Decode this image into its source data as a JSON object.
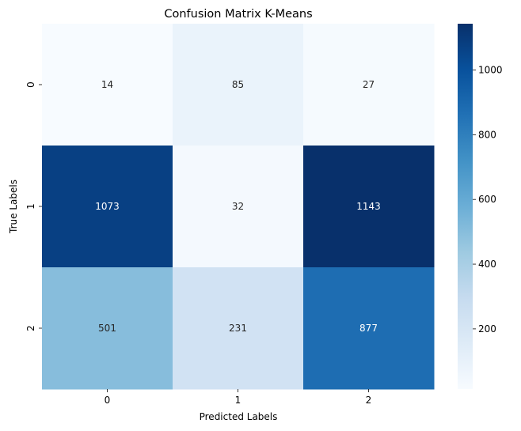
{
  "chart_data": {
    "type": "heatmap",
    "title": "Confusion Matrix K-Means",
    "xlabel": "Predicted Labels",
    "ylabel": "True Labels",
    "x_categories": [
      "0",
      "1",
      "2"
    ],
    "y_categories": [
      "0",
      "1",
      "2"
    ],
    "values": [
      [
        14,
        85,
        27
      ],
      [
        1073,
        32,
        1143
      ],
      [
        501,
        231,
        877
      ]
    ],
    "colormap": "Blues",
    "color_range": [
      14,
      1143
    ],
    "colorbar_ticks": [
      200,
      400,
      600,
      800,
      1000
    ],
    "colorbar_tick_labels": [
      "200",
      "400",
      "600",
      "800",
      "1000"
    ],
    "annotations": true
  }
}
